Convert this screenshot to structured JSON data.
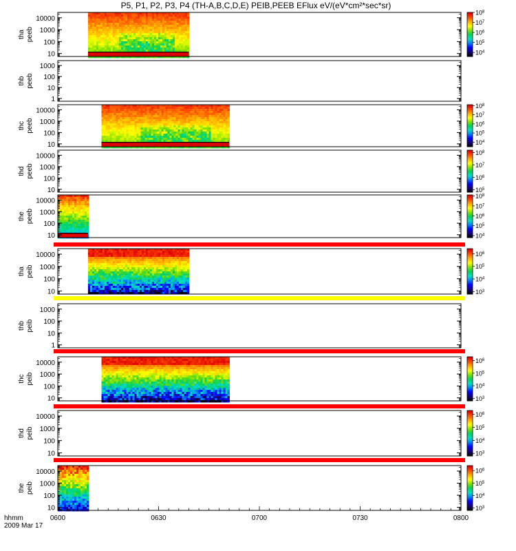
{
  "title": "P5, P1, P2, P3, P4 (TH-A,B,C,D,E) PEIB,PEEB EFlux eV/(eV*cm²*sec*sr)",
  "footer": {
    "time_label": "hhmm",
    "date_label": "2009 Mar 17"
  },
  "chart_data": {
    "type": "heatmap",
    "time_axis": {
      "range": [
        "0600",
        "0800"
      ],
      "ticks": [
        "0600",
        "0630",
        "0700",
        "0730",
        "0800"
      ]
    },
    "colormap": [
      "#000000",
      "#1a0080",
      "#0000ff",
      "#0080ff",
      "#00e0c0",
      "#00d060",
      "#80e000",
      "#ffff00",
      "#ffb000",
      "#ff5000",
      "#e00000"
    ],
    "panels": [
      {
        "probe": "tha",
        "instrument": "peeb",
        "ylabel": [
          "tha",
          "peeb"
        ],
        "yticks": [
          "10",
          "100",
          "1000",
          "10000"
        ],
        "data": {
          "start": "0609",
          "end": "0639",
          "pattern": "electron"
        },
        "colorbar": {
          "exponent": [
            4,
            5,
            6,
            7,
            8
          ],
          "range": [
            3.6,
            8
          ]
        }
      },
      {
        "probe": "thb",
        "instrument": "peeb",
        "ylabel": [
          "thb",
          "peeb"
        ],
        "yticks": [
          "1",
          "10",
          "100",
          "1000"
        ],
        "data": null,
        "colorbar": null
      },
      {
        "probe": "thc",
        "instrument": "peeb",
        "ylabel": [
          "thc",
          "peeb"
        ],
        "yticks": [
          "10",
          "100",
          "1000",
          "10000"
        ],
        "data": {
          "start": "0613",
          "end": "0651",
          "pattern": "electron"
        },
        "colorbar": {
          "exponent": [
            4,
            5,
            6,
            7,
            8
          ],
          "range": [
            3.5,
            8.1
          ]
        }
      },
      {
        "probe": "thd",
        "instrument": "peeb",
        "ylabel": [
          "thd",
          "peeb"
        ],
        "yticks": [
          "10",
          "100",
          "1000",
          "10000"
        ],
        "data": null,
        "colorbar": {
          "exponent": [
            5,
            6,
            7,
            8
          ],
          "range": [
            4.8,
            8.2
          ]
        }
      },
      {
        "probe": "the",
        "instrument": "peeb",
        "ylabel": [
          "the",
          "peeb"
        ],
        "yticks": [
          "10",
          "100",
          "1000",
          "10000"
        ],
        "data": {
          "start": "0600",
          "end": "0609",
          "pattern": "electron-edge"
        },
        "colorbar": {
          "exponent": [
            4,
            5,
            6,
            7,
            8
          ],
          "range": [
            3.8,
            8.1
          ]
        }
      },
      {
        "probe": "tha",
        "instrument": "peib",
        "ylabel": [
          "tha",
          "peib"
        ],
        "yticks": [
          "10",
          "100",
          "1000",
          "10000"
        ],
        "data": {
          "start": "0609",
          "end": "0639",
          "pattern": "ion"
        },
        "colorbar": {
          "exponent": [
            3,
            4,
            5,
            6
          ],
          "range": [
            2.8,
            6.4
          ]
        }
      },
      {
        "probe": "thb",
        "instrument": "peib",
        "ylabel": [
          "thb",
          "peib"
        ],
        "yticks": [
          "1",
          "10",
          "100",
          "1000"
        ],
        "data": null,
        "colorbar": null
      },
      {
        "probe": "thc",
        "instrument": "peib",
        "ylabel": [
          "thc",
          "peib"
        ],
        "yticks": [
          "10",
          "100",
          "1000",
          "10000"
        ],
        "data": {
          "start": "0613",
          "end": "0651",
          "pattern": "ion"
        },
        "colorbar": {
          "exponent": [
            3,
            4,
            5,
            6
          ],
          "range": [
            2.8,
            6.3
          ]
        }
      },
      {
        "probe": "thd",
        "instrument": "peib",
        "ylabel": [
          "thd",
          "peib"
        ],
        "yticks": [
          "10",
          "100",
          "1000",
          "10000"
        ],
        "data": null,
        "colorbar": {
          "exponent": [
            3,
            4,
            5,
            6
          ],
          "range": [
            2.8,
            6.3
          ]
        }
      },
      {
        "probe": "the",
        "instrument": "peib",
        "ylabel": [
          "the",
          "peib"
        ],
        "yticks": [
          "10",
          "100",
          "1000",
          "10000"
        ],
        "data": {
          "start": "0600",
          "end": "0609",
          "pattern": "ion-edge"
        },
        "colorbar": {
          "exponent": [
            3,
            4,
            5,
            6
          ],
          "range": [
            2.8,
            6.4
          ]
        }
      }
    ],
    "separators": [
      {
        "between": [
          "the peeb",
          "tha peib"
        ],
        "color": "#ff0000"
      },
      {
        "between": [
          "tha peib",
          "thb peib"
        ],
        "color": "#ffff00"
      },
      {
        "between": [
          "thb peib",
          "thc peib"
        ],
        "color": "#ff0000"
      },
      {
        "between": [
          "thc peib",
          "thd peib"
        ],
        "color": "#ff0000"
      },
      {
        "between": [
          "thd peib",
          "the peib"
        ],
        "color": "#ff0000"
      }
    ]
  }
}
